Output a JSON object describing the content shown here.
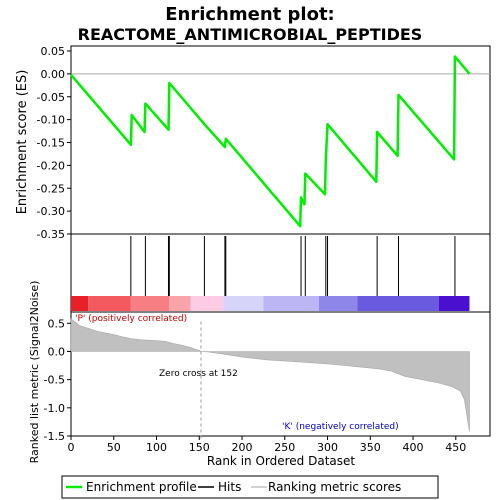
{
  "chart_data": {
    "type": "line",
    "title": "Enrichment plot:",
    "subtitle": "REACTOME_ANTIMICROBIAL_PEPTIDES",
    "ylabel_top": "Enrichment score (ES)",
    "ylabel_bottom": "Ranked list metric (Signal2Noise)",
    "xlabel": "Rank in Ordered Dataset",
    "xlim": [
      0,
      490
    ],
    "x_ticks": [
      "0",
      "50",
      "100",
      "150",
      "200",
      "250",
      "300",
      "350",
      "400",
      "450"
    ],
    "x_tick_values": [
      0,
      50,
      100,
      150,
      200,
      250,
      300,
      350,
      400,
      450
    ],
    "es_ylim": [
      -0.35,
      0.05
    ],
    "es_ticks": [
      "0.05",
      "0.00",
      "-0.05",
      "-0.10",
      "-0.15",
      "-0.20",
      "-0.25",
      "-0.30",
      "-0.35"
    ],
    "es_tick_values": [
      0.05,
      0.0,
      -0.05,
      -0.1,
      -0.15,
      -0.2,
      -0.25,
      -0.3,
      -0.35
    ],
    "es_color": "#00ee00",
    "enrichment_profile": {
      "x": [
        0,
        70,
        71,
        86,
        87,
        114,
        115,
        156,
        180,
        181,
        268,
        269,
        273,
        274,
        297,
        298,
        300,
        357,
        358,
        382,
        383,
        448,
        449,
        466
      ],
      "y": [
        -0.002,
        -0.155,
        -0.09,
        -0.127,
        -0.065,
        -0.122,
        -0.02,
        -0.11,
        -0.16,
        -0.142,
        -0.333,
        -0.27,
        -0.285,
        -0.218,
        -0.263,
        -0.188,
        -0.11,
        -0.236,
        -0.127,
        -0.179,
        -0.046,
        -0.187,
        0.038,
        0.0
      ]
    },
    "hits": [
      70,
      87,
      114,
      115,
      156,
      180,
      181,
      269,
      274,
      298,
      300,
      358,
      383,
      449
    ],
    "metric_ylim": [
      -1.5,
      0.7
    ],
    "metric_ticks": [
      "0.5",
      "0.0",
      "-0.5",
      "-1.0",
      "-1.5"
    ],
    "metric_tick_values": [
      0.5,
      0.0,
      -0.5,
      -1.0,
      -1.5
    ],
    "metric_color": "#c0c0c0",
    "ranking_metric": {
      "x": [
        0,
        5,
        10,
        20,
        30,
        40,
        50,
        60,
        70,
        80,
        90,
        100,
        110,
        115,
        120,
        130,
        140,
        145,
        150,
        152,
        160,
        180,
        200,
        230,
        260,
        280,
        300,
        320,
        340,
        360,
        375,
        390,
        410,
        430,
        445,
        455,
        460,
        462,
        464,
        466
      ],
      "y": [
        0.58,
        0.52,
        0.46,
        0.41,
        0.36,
        0.33,
        0.3,
        0.26,
        0.23,
        0.21,
        0.2,
        0.19,
        0.18,
        0.16,
        0.14,
        0.11,
        0.07,
        0.04,
        0.02,
        0.0,
        -0.01,
        -0.05,
        -0.1,
        -0.15,
        -0.18,
        -0.2,
        -0.22,
        -0.25,
        -0.28,
        -0.31,
        -0.35,
        -0.44,
        -0.5,
        -0.56,
        -0.62,
        -0.7,
        -0.85,
        -1.05,
        -1.25,
        -1.42
      ]
    },
    "heatmap_segments": [
      {
        "start": 0,
        "end": 20,
        "color": "#e8202a"
      },
      {
        "start": 20,
        "end": 70,
        "color": "#f35a5f"
      },
      {
        "start": 70,
        "end": 115,
        "color": "#f77f84"
      },
      {
        "start": 115,
        "end": 140,
        "color": "#f9a4a8"
      },
      {
        "start": 140,
        "end": 178,
        "color": "#fccbe4"
      },
      {
        "start": 178,
        "end": 225,
        "color": "#d7d4fa"
      },
      {
        "start": 225,
        "end": 290,
        "color": "#bcb6f4"
      },
      {
        "start": 290,
        "end": 335,
        "color": "#8f86ea"
      },
      {
        "start": 335,
        "end": 430,
        "color": "#6a5ae0"
      },
      {
        "start": 430,
        "end": 466,
        "color": "#4a10d0"
      }
    ],
    "annotation_pos": "'P' (positively correlated)",
    "annotation_neg": "'K' (negatively correlated)",
    "annotation_zero": "Zero cross at 152",
    "zero_cross": 152,
    "legend": {
      "placement": "bottom",
      "items": [
        {
          "label": "Enrichment profile",
          "color": "#00ee00"
        },
        {
          "label": "Hits",
          "color": "#000000"
        },
        {
          "label": "Ranking metric scores",
          "color": "#c0c0c0"
        }
      ]
    }
  }
}
